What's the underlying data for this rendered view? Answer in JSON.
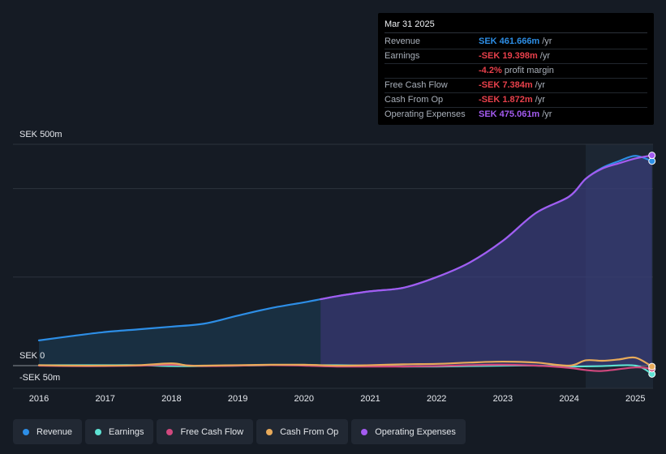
{
  "tooltip": {
    "date": "Mar 31 2025",
    "rows": [
      {
        "label": "Revenue",
        "value": "SEK 461.666m",
        "unit": "/yr",
        "color": "#2d8ee6"
      },
      {
        "label": "Earnings",
        "value": "-SEK 19.398m",
        "unit": "/yr",
        "color": "#e8404b"
      },
      {
        "label": "",
        "value": "-4.2%",
        "unit": "profit margin",
        "color": "#e8404b"
      },
      {
        "label": "Free Cash Flow",
        "value": "-SEK 7.384m",
        "unit": "/yr",
        "color": "#e8404b"
      },
      {
        "label": "Cash From Op",
        "value": "-SEK 1.872m",
        "unit": "/yr",
        "color": "#e8404b"
      },
      {
        "label": "Operating Expenses",
        "value": "SEK 475.061m",
        "unit": "/yr",
        "color": "#a45bf0"
      }
    ]
  },
  "axis": {
    "y_top_label": "SEK 500m",
    "y_zero_label": "SEK 0",
    "y_bottom_label": "-SEK 50m"
  },
  "legend": [
    {
      "label": "Revenue",
      "color": "#2d8ee6"
    },
    {
      "label": "Earnings",
      "color": "#5ee2d3"
    },
    {
      "label": "Free Cash Flow",
      "color": "#d1487e"
    },
    {
      "label": "Cash From Op",
      "color": "#e8aa5a"
    },
    {
      "label": "Operating Expenses",
      "color": "#a45bf0"
    }
  ],
  "chart_data": {
    "type": "line",
    "ylim": [
      -50,
      500
    ],
    "x_ticks": [
      "2016",
      "2017",
      "2018",
      "2019",
      "2020",
      "2021",
      "2022",
      "2023",
      "2024",
      "2025"
    ],
    "series": [
      {
        "name": "Revenue",
        "color": "#2d8ee6",
        "x": [
          2016.0,
          2016.5,
          2017.0,
          2017.5,
          2018.0,
          2018.5,
          2019.0,
          2019.5,
          2020.0,
          2020.25,
          2020.5,
          2021.0,
          2021.5,
          2022.0,
          2022.5,
          2023.0,
          2023.5,
          2024.0,
          2024.25,
          2024.5,
          2024.75,
          2025.0,
          2025.25
        ],
        "y": [
          57,
          67,
          76,
          82,
          88,
          95,
          113,
          130,
          143,
          150,
          157,
          168,
          176,
          200,
          233,
          282,
          345,
          382,
          422,
          447,
          462,
          474,
          462
        ]
      },
      {
        "name": "Operating Expenses",
        "color": "#a45bf0",
        "x": [
          2020.25,
          2020.5,
          2021.0,
          2021.5,
          2022.0,
          2022.5,
          2023.0,
          2023.5,
          2024.0,
          2024.25,
          2024.5,
          2024.75,
          2025.0,
          2025.25
        ],
        "y": [
          150,
          157,
          168,
          176,
          200,
          233,
          282,
          345,
          382,
          422,
          445,
          457,
          468,
          475
        ]
      },
      {
        "name": "Earnings",
        "color": "#5ee2d3",
        "x": [
          2016.0,
          2016.5,
          2017.0,
          2017.5,
          2018.0,
          2018.5,
          2019.0,
          2019.5,
          2020.0,
          2020.5,
          2021.0,
          2021.5,
          2022.0,
          2022.5,
          2023.0,
          2023.5,
          2024.0,
          2024.5,
          2025.0,
          2025.25
        ],
        "y": [
          1,
          1,
          1,
          1,
          -1,
          -1,
          0,
          1,
          1,
          1,
          0,
          -2,
          -2,
          -1,
          0,
          0,
          -2,
          -1,
          0,
          -19
        ]
      },
      {
        "name": "Free Cash Flow",
        "color": "#d1487e",
        "x": [
          2016.0,
          2016.5,
          2017.0,
          2017.5,
          2018.0,
          2018.5,
          2019.0,
          2019.5,
          2020.0,
          2020.5,
          2021.0,
          2021.5,
          2022.0,
          2022.5,
          2023.0,
          2023.5,
          2024.0,
          2024.25,
          2024.5,
          2025.0,
          2025.25
        ],
        "y": [
          0,
          -1,
          -1,
          0,
          2,
          -1,
          0,
          1,
          0,
          -2,
          -2,
          -2,
          -1,
          1,
          2,
          0,
          -5,
          -10,
          -12,
          -4,
          -7
        ]
      },
      {
        "name": "Cash From Op",
        "color": "#e8aa5a",
        "x": [
          2016.0,
          2016.5,
          2017.0,
          2017.5,
          2018.0,
          2018.25,
          2018.5,
          2019.0,
          2019.5,
          2020.0,
          2020.5,
          2021.0,
          2021.5,
          2022.0,
          2022.5,
          2023.0,
          2023.5,
          2024.0,
          2024.25,
          2024.5,
          2024.75,
          2025.0,
          2025.25
        ],
        "y": [
          1,
          0,
          0,
          1,
          5,
          0,
          0,
          1,
          2,
          2,
          0,
          1,
          3,
          4,
          7,
          9,
          7,
          0,
          12,
          11,
          14,
          18,
          -2
        ]
      }
    ]
  }
}
